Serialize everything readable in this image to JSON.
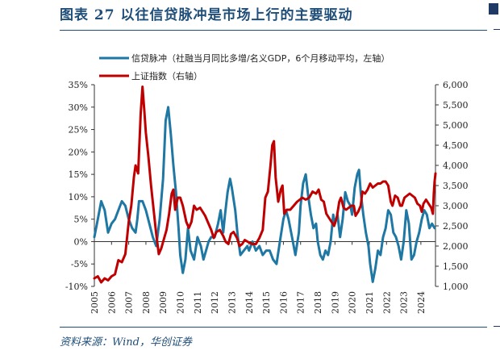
{
  "figure": {
    "title": "图表 27   以往信贷脉冲是市场上行的主要驱动",
    "source": "资料来源：Wind，华创证券"
  },
  "colors": {
    "credit": "#1f77a4",
    "index": "#c00000",
    "axis": "#333333",
    "title": "#1f4e79"
  },
  "chart_data": {
    "type": "line",
    "title": "",
    "xlabel": "",
    "legend_position": "top-left",
    "grid": false,
    "x_tick_labels": [
      "2005",
      "2006",
      "2007",
      "2008",
      "2009",
      "2010",
      "2011",
      "2012",
      "2013",
      "2014",
      "2015",
      "2016",
      "2017",
      "2018",
      "2019",
      "2020",
      "2021",
      "2022",
      "2023",
      "2024"
    ],
    "x_range": [
      2005.0,
      2024.85
    ],
    "y_left": {
      "label": "",
      "range": [
        -10,
        35
      ],
      "ticks": [
        -10,
        -5,
        0,
        5,
        10,
        15,
        20,
        25,
        30,
        35
      ],
      "tick_labels": [
        "-10%",
        "-5%",
        "0%",
        "5%",
        "10%",
        "15%",
        "20%",
        "25%",
        "30%",
        "35%"
      ]
    },
    "y_right": {
      "label": "",
      "range": [
        1000,
        6000
      ],
      "ticks": [
        1000,
        1500,
        2000,
        2500,
        3000,
        3500,
        4000,
        4500,
        5000,
        5500,
        6000
      ],
      "tick_labels": [
        "1,000",
        "1,500",
        "2,000",
        "2,500",
        "3,000",
        "3,500",
        "4,000",
        "4,500",
        "5,000",
        "5,500",
        "6,000"
      ]
    },
    "series": [
      {
        "name": "信贷脉冲（社融当月同比多增/名义GDP，6个月移动平均，左轴）",
        "axis": "left",
        "color": "#1f77a4",
        "points": [
          [
            2005.0,
            1
          ],
          [
            2005.2,
            5
          ],
          [
            2005.4,
            9
          ],
          [
            2005.6,
            7
          ],
          [
            2005.8,
            2
          ],
          [
            2006.0,
            4
          ],
          [
            2006.2,
            5
          ],
          [
            2006.4,
            7
          ],
          [
            2006.6,
            9
          ],
          [
            2006.8,
            8
          ],
          [
            2007.0,
            5
          ],
          [
            2007.2,
            3
          ],
          [
            2007.4,
            2
          ],
          [
            2007.5,
            5
          ],
          [
            2007.6,
            9
          ],
          [
            2007.8,
            9
          ],
          [
            2008.0,
            7
          ],
          [
            2008.2,
            4
          ],
          [
            2008.4,
            1
          ],
          [
            2008.6,
            -1
          ],
          [
            2008.8,
            5
          ],
          [
            2009.0,
            14
          ],
          [
            2009.15,
            27
          ],
          [
            2009.3,
            30
          ],
          [
            2009.45,
            24
          ],
          [
            2009.6,
            17
          ],
          [
            2009.75,
            11
          ],
          [
            2009.9,
            3
          ],
          [
            2010.0,
            -3
          ],
          [
            2010.15,
            -7
          ],
          [
            2010.3,
            -4
          ],
          [
            2010.45,
            3
          ],
          [
            2010.6,
            -2
          ],
          [
            2010.8,
            -4
          ],
          [
            2011.0,
            1
          ],
          [
            2011.2,
            -1
          ],
          [
            2011.35,
            -4
          ],
          [
            2011.5,
            -2
          ],
          [
            2011.65,
            0
          ],
          [
            2011.8,
            1
          ],
          [
            2012.0,
            1
          ],
          [
            2012.2,
            4
          ],
          [
            2012.35,
            7
          ],
          [
            2012.5,
            2
          ],
          [
            2012.6,
            6
          ],
          [
            2012.75,
            11
          ],
          [
            2012.9,
            14
          ],
          [
            2013.0,
            12
          ],
          [
            2013.2,
            7
          ],
          [
            2013.35,
            1
          ],
          [
            2013.5,
            -3
          ],
          [
            2013.7,
            -2
          ],
          [
            2013.9,
            -1
          ],
          [
            2014.0,
            -2
          ],
          [
            2014.2,
            0
          ],
          [
            2014.4,
            -2
          ],
          [
            2014.6,
            -1
          ],
          [
            2014.8,
            -3
          ],
          [
            2015.0,
            -2
          ],
          [
            2015.2,
            -2
          ],
          [
            2015.4,
            -4
          ],
          [
            2015.6,
            -5
          ],
          [
            2015.8,
            0
          ],
          [
            2016.0,
            5
          ],
          [
            2016.15,
            7
          ],
          [
            2016.3,
            5
          ],
          [
            2016.5,
            1
          ],
          [
            2016.7,
            -3
          ],
          [
            2016.9,
            2
          ],
          [
            2017.0,
            8
          ],
          [
            2017.15,
            13
          ],
          [
            2017.3,
            15
          ],
          [
            2017.45,
            10
          ],
          [
            2017.6,
            6
          ],
          [
            2017.75,
            3
          ],
          [
            2017.9,
            4
          ],
          [
            2018.0,
            0
          ],
          [
            2018.15,
            -3
          ],
          [
            2018.3,
            -4
          ],
          [
            2018.45,
            -2
          ],
          [
            2018.6,
            -3
          ],
          [
            2018.75,
            0
          ],
          [
            2018.9,
            6
          ],
          [
            2019.0,
            4
          ],
          [
            2019.15,
            6
          ],
          [
            2019.3,
            1
          ],
          [
            2019.45,
            5
          ],
          [
            2019.6,
            11
          ],
          [
            2019.75,
            9
          ],
          [
            2019.9,
            8
          ],
          [
            2020.0,
            6
          ],
          [
            2020.15,
            12
          ],
          [
            2020.3,
            15
          ],
          [
            2020.4,
            16
          ],
          [
            2020.5,
            11
          ],
          [
            2020.65,
            6
          ],
          [
            2020.8,
            2
          ],
          [
            2020.95,
            -1
          ],
          [
            2021.05,
            -5
          ],
          [
            2021.2,
            -9
          ],
          [
            2021.35,
            -6
          ],
          [
            2021.5,
            -2
          ],
          [
            2021.65,
            -3
          ],
          [
            2021.8,
            1
          ],
          [
            2021.95,
            3
          ],
          [
            2022.1,
            7
          ],
          [
            2022.25,
            6
          ],
          [
            2022.4,
            2
          ],
          [
            2022.55,
            1
          ],
          [
            2022.7,
            -1
          ],
          [
            2022.85,
            -4
          ],
          [
            2023.0,
            0
          ],
          [
            2023.15,
            7
          ],
          [
            2023.3,
            4
          ],
          [
            2023.45,
            -4
          ],
          [
            2023.6,
            -3
          ],
          [
            2023.75,
            0
          ],
          [
            2023.9,
            2
          ],
          [
            2024.05,
            5
          ],
          [
            2024.2,
            7
          ],
          [
            2024.35,
            6
          ],
          [
            2024.5,
            3
          ],
          [
            2024.65,
            4
          ],
          [
            2024.8,
            3
          ]
        ]
      },
      {
        "name": "上证指数（右轴）",
        "axis": "right",
        "color": "#c00000",
        "points": [
          [
            2005.0,
            1200
          ],
          [
            2005.2,
            1250
          ],
          [
            2005.4,
            1100
          ],
          [
            2005.6,
            1200
          ],
          [
            2005.8,
            1150
          ],
          [
            2006.0,
            1250
          ],
          [
            2006.2,
            1300
          ],
          [
            2006.4,
            1650
          ],
          [
            2006.6,
            1600
          ],
          [
            2006.8,
            1800
          ],
          [
            2007.0,
            2600
          ],
          [
            2007.15,
            3000
          ],
          [
            2007.3,
            3700
          ],
          [
            2007.4,
            4000
          ],
          [
            2007.55,
            3800
          ],
          [
            2007.7,
            5300
          ],
          [
            2007.8,
            5950
          ],
          [
            2007.9,
            5400
          ],
          [
            2008.0,
            4800
          ],
          [
            2008.15,
            4200
          ],
          [
            2008.3,
            3500
          ],
          [
            2008.45,
            2900
          ],
          [
            2008.6,
            2300
          ],
          [
            2008.75,
            1800
          ],
          [
            2008.9,
            1950
          ],
          [
            2009.0,
            2100
          ],
          [
            2009.2,
            2400
          ],
          [
            2009.35,
            2800
          ],
          [
            2009.5,
            3300
          ],
          [
            2009.6,
            3400
          ],
          [
            2009.7,
            2900
          ],
          [
            2009.85,
            3200
          ],
          [
            2010.0,
            3200
          ],
          [
            2010.15,
            3000
          ],
          [
            2010.35,
            2600
          ],
          [
            2010.5,
            2450
          ],
          [
            2010.65,
            2600
          ],
          [
            2010.8,
            3000
          ],
          [
            2010.95,
            2900
          ],
          [
            2011.15,
            2950
          ],
          [
            2011.3,
            2850
          ],
          [
            2011.45,
            2750
          ],
          [
            2011.6,
            2600
          ],
          [
            2011.8,
            2400
          ],
          [
            2011.95,
            2200
          ],
          [
            2012.1,
            2350
          ],
          [
            2012.3,
            2400
          ],
          [
            2012.5,
            2250
          ],
          [
            2012.65,
            2100
          ],
          [
            2012.8,
            2050
          ],
          [
            2012.95,
            2300
          ],
          [
            2013.1,
            2350
          ],
          [
            2013.3,
            2200
          ],
          [
            2013.45,
            2000
          ],
          [
            2013.6,
            2050
          ],
          [
            2013.75,
            2150
          ],
          [
            2013.95,
            2100
          ],
          [
            2014.2,
            2050
          ],
          [
            2014.4,
            2050
          ],
          [
            2014.6,
            2200
          ],
          [
            2014.8,
            2400
          ],
          [
            2014.95,
            3200
          ],
          [
            2015.1,
            3350
          ],
          [
            2015.25,
            4000
          ],
          [
            2015.35,
            4500
          ],
          [
            2015.45,
            4600
          ],
          [
            2015.55,
            3700
          ],
          [
            2015.7,
            3100
          ],
          [
            2015.85,
            3400
          ],
          [
            2015.95,
            3500
          ],
          [
            2016.05,
            2800
          ],
          [
            2016.2,
            2900
          ],
          [
            2016.4,
            2900
          ],
          [
            2016.6,
            3000
          ],
          [
            2016.8,
            3100
          ],
          [
            2016.95,
            3150
          ],
          [
            2017.1,
            3200
          ],
          [
            2017.3,
            3150
          ],
          [
            2017.5,
            3200
          ],
          [
            2017.7,
            3350
          ],
          [
            2017.9,
            3300
          ],
          [
            2018.05,
            3400
          ],
          [
            2018.2,
            3150
          ],
          [
            2018.35,
            3100
          ],
          [
            2018.5,
            2800
          ],
          [
            2018.65,
            2700
          ],
          [
            2018.8,
            2600
          ],
          [
            2018.95,
            2500
          ],
          [
            2019.1,
            2700
          ],
          [
            2019.25,
            3100
          ],
          [
            2019.35,
            3200
          ],
          [
            2019.5,
            2950
          ],
          [
            2019.65,
            2900
          ],
          [
            2019.8,
            2950
          ],
          [
            2019.95,
            3000
          ],
          [
            2020.1,
            3000
          ],
          [
            2020.2,
            2750
          ],
          [
            2020.35,
            2850
          ],
          [
            2020.5,
            3000
          ],
          [
            2020.6,
            3350
          ],
          [
            2020.75,
            3300
          ],
          [
            2020.9,
            3400
          ],
          [
            2021.05,
            3550
          ],
          [
            2021.2,
            3450
          ],
          [
            2021.35,
            3500
          ],
          [
            2021.5,
            3550
          ],
          [
            2021.65,
            3550
          ],
          [
            2021.8,
            3600
          ],
          [
            2021.95,
            3600
          ],
          [
            2022.1,
            3500
          ],
          [
            2022.25,
            3100
          ],
          [
            2022.35,
            3000
          ],
          [
            2022.5,
            3250
          ],
          [
            2022.65,
            3200
          ],
          [
            2022.8,
            3000
          ],
          [
            2022.9,
            3000
          ],
          [
            2023.05,
            3200
          ],
          [
            2023.2,
            3250
          ],
          [
            2023.35,
            3300
          ],
          [
            2023.5,
            3250
          ],
          [
            2023.65,
            3200
          ],
          [
            2023.8,
            3050
          ],
          [
            2023.95,
            3000
          ],
          [
            2024.05,
            2850
          ],
          [
            2024.15,
            3050
          ],
          [
            2024.3,
            3150
          ],
          [
            2024.45,
            3050
          ],
          [
            2024.6,
            2950
          ],
          [
            2024.7,
            2800
          ],
          [
            2024.75,
            3300
          ],
          [
            2024.8,
            3600
          ],
          [
            2024.85,
            3800
          ]
        ]
      }
    ]
  }
}
